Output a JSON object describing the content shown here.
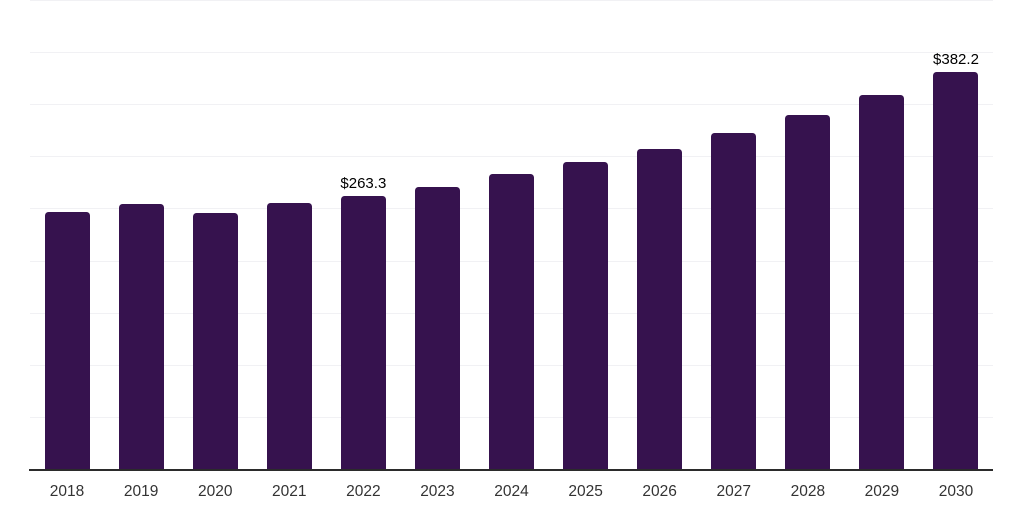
{
  "chart_data": {
    "type": "bar",
    "title": "",
    "xlabel": "",
    "ylabel": "",
    "categories": [
      "2018",
      "2019",
      "2020",
      "2021",
      "2022",
      "2023",
      "2024",
      "2025",
      "2026",
      "2027",
      "2028",
      "2029",
      "2030"
    ],
    "values": [
      247.4,
      255.4,
      246.5,
      256.0,
      263.3,
      272.0,
      283.6,
      295.4,
      308.4,
      323.3,
      341.0,
      360.2,
      382.2
    ],
    "value_annotations": [
      {
        "category": "2022",
        "text": "$263.3"
      },
      {
        "category": "2030",
        "text": "$382.2"
      }
    ],
    "ylim": [
      0,
      450
    ],
    "grid_step": 50,
    "grid": "horizontal",
    "y_tick_labels_visible": false,
    "legend_position": "none",
    "colors": {
      "bar": "#36124E",
      "gridline": "#f1f1f4",
      "axis_line": "#2b2b2b",
      "tick_label": "#333333",
      "value_label": "#000000",
      "background": "#ffffff"
    }
  }
}
